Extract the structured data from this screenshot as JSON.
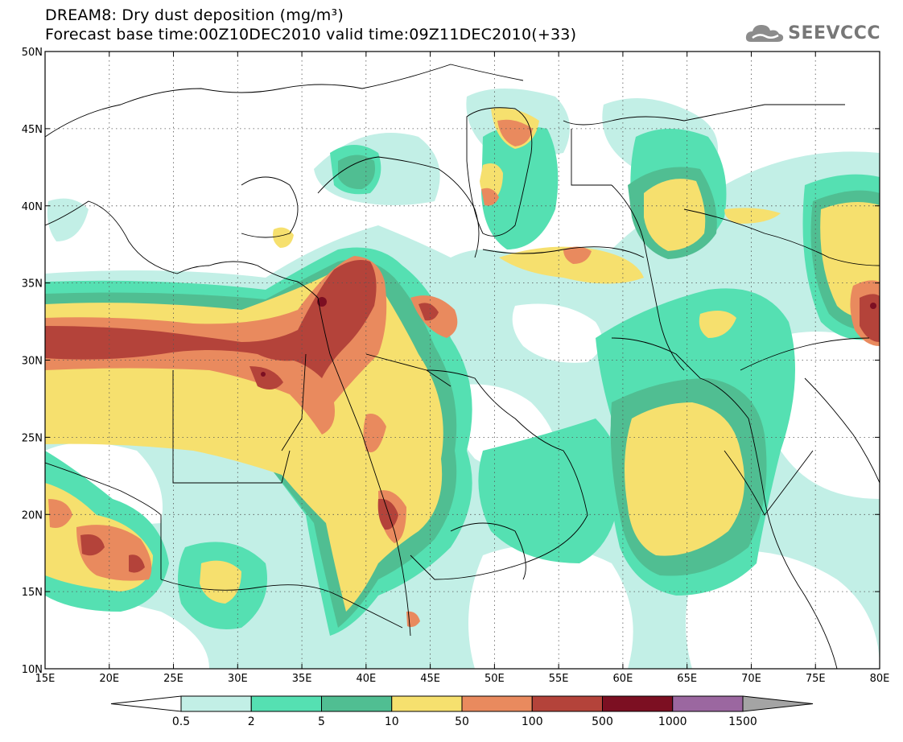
{
  "title": {
    "line1": "DREAM8: Dry dust deposition (mg/m³)",
    "line2": "Forecast base time:00Z10DEC2010 valid time:09Z11DEC2010(+33)"
  },
  "logo": {
    "text": "SEEVCCC",
    "icon": "cloud-icon"
  },
  "map": {
    "lon_range": [
      15,
      80
    ],
    "lat_range": [
      10,
      50
    ],
    "lon_ticks": [
      "15E",
      "20E",
      "25E",
      "30E",
      "35E",
      "40E",
      "45E",
      "50E",
      "55E",
      "60E",
      "65E",
      "70E",
      "75E",
      "80E"
    ],
    "lat_ticks": [
      "10N",
      "15N",
      "20N",
      "25N",
      "30N",
      "35N",
      "40N",
      "45N",
      "50N"
    ],
    "grid": "dotted"
  },
  "colorbar": {
    "levels": [
      "0.5",
      "2",
      "5",
      "10",
      "50",
      "100",
      "500",
      "1000",
      "1500"
    ],
    "colors": [
      "#c2efe6",
      "#55e0b2",
      "#50be92",
      "#f6e06e",
      "#e98a5e",
      "#b4433a",
      "#7c0f22",
      "#9b67a0",
      "#a4a4a4"
    ],
    "low_arrow_color": "#ffffff",
    "high_arrow_color": "#a4a4a4"
  }
}
